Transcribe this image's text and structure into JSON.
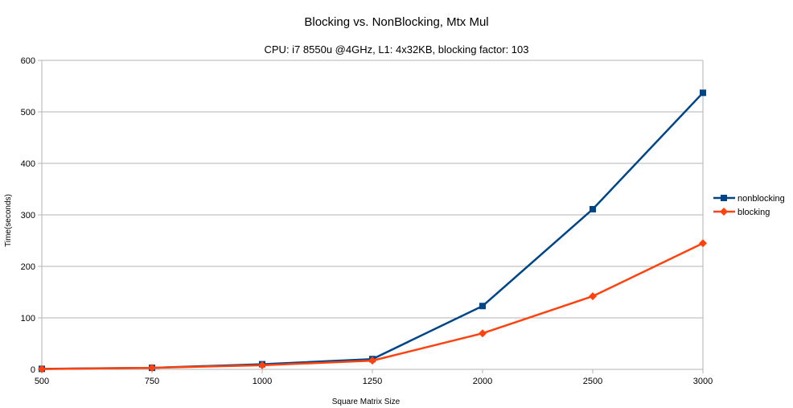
{
  "chart_data": {
    "type": "line",
    "title": "Blocking vs. NonBlocking, Mtx Mul",
    "subtitle": "CPU: i7 8550u @4GHz, L1: 4x32KB, blocking factor: 103",
    "xlabel": "Square Matrix Size",
    "ylabel": "Time(seconds)",
    "categories": [
      "500",
      "750",
      "1000",
      "1250",
      "2000",
      "2500",
      "3000"
    ],
    "yticks": [
      "0",
      "100",
      "200",
      "300",
      "400",
      "500",
      "600"
    ],
    "ylim": [
      0,
      600
    ],
    "grid": true,
    "legend_position": "right",
    "series": [
      {
        "name": "nonblocking",
        "color": "#004586",
        "marker": "square",
        "values": [
          1,
          3,
          10,
          20,
          123,
          311,
          537
        ]
      },
      {
        "name": "blocking",
        "color": "#ff420e",
        "marker": "diamond",
        "values": [
          0.5,
          3,
          8,
          17,
          70,
          142,
          245
        ]
      }
    ]
  }
}
